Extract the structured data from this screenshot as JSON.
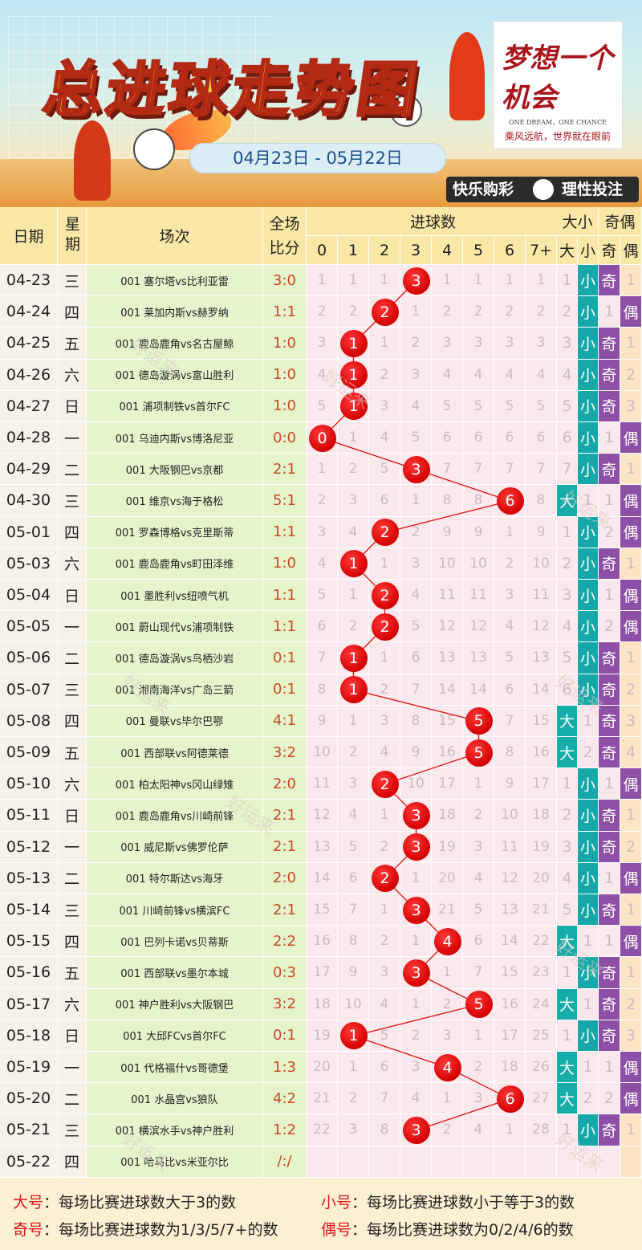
{
  "header": {
    "title": "总进球走势图",
    "date_range": "04月23日 - 05月22日",
    "card_title": "梦想一个机会",
    "card_line1": "ONE DREAM，ONE CHANCE",
    "card_line2": "乘风远航，世界就在眼前",
    "slogan_left": "快乐购彩",
    "slogan_right": "理性投注"
  },
  "table_headers": {
    "date": "日期",
    "week": "星期",
    "match": "场次",
    "score": "全场比分",
    "goals": "进球数",
    "size": "大小",
    "parity": "奇偶",
    "goal_cols": [
      "0",
      "1",
      "2",
      "3",
      "4",
      "5",
      "6",
      "7+"
    ],
    "size_cols": [
      "大",
      "小"
    ],
    "parity_cols": [
      "奇",
      "偶"
    ]
  },
  "colors": {
    "header_bg": "#fbe8a6",
    "row_bg": "#e6f4cc",
    "date_bg": "#f6f2ea",
    "grid_bg": "#fbe8ec",
    "size_big": "#16aca8",
    "size_small": "#16a8a8",
    "odd": "#8e4fa6",
    "even": "#8e4fa6",
    "marker": "#e01010",
    "score_text": "#c84a24"
  },
  "chart_data": {
    "type": "table",
    "title": "总进球走势图",
    "rows": [
      {
        "date": "04-23",
        "week": "三",
        "match": "001 塞尔塔vs比利亚雷",
        "score": "3:0",
        "goals": 3,
        "cells": [
          "1",
          "1",
          "1",
          "3",
          "1",
          "1",
          "1",
          "1"
        ],
        "big": "1",
        "small": "小",
        "odd": "奇",
        "even": "1"
      },
      {
        "date": "04-24",
        "week": "四",
        "match": "001 莱加内斯vs赫罗纳",
        "score": "1:1",
        "goals": 2,
        "cells": [
          "2",
          "2",
          "2",
          "1",
          "2",
          "2",
          "2",
          "2"
        ],
        "big": "2",
        "small": "小",
        "odd": "1",
        "even": "偶"
      },
      {
        "date": "04-25",
        "week": "五",
        "match": "001 鹿岛鹿角vs名古屋鲸",
        "score": "1:0",
        "goals": 1,
        "cells": [
          "3",
          "1",
          "1",
          "2",
          "3",
          "3",
          "3",
          "3"
        ],
        "big": "3",
        "small": "小",
        "odd": "奇",
        "even": "1"
      },
      {
        "date": "04-26",
        "week": "六",
        "match": "001 德岛漩涡vs富山胜利",
        "score": "1:0",
        "goals": 1,
        "cells": [
          "4",
          "1",
          "2",
          "3",
          "4",
          "4",
          "4",
          "4"
        ],
        "big": "4",
        "small": "小",
        "odd": "奇",
        "even": "2"
      },
      {
        "date": "04-27",
        "week": "日",
        "match": "001 浦项制铁vs首尔FC",
        "score": "1:0",
        "goals": 1,
        "cells": [
          "5",
          "1",
          "3",
          "4",
          "5",
          "5",
          "5",
          "5"
        ],
        "big": "5",
        "small": "小",
        "odd": "奇",
        "even": "3"
      },
      {
        "date": "04-28",
        "week": "一",
        "match": "001 乌迪内斯vs博洛尼亚",
        "score": "0:0",
        "goals": 0,
        "cells": [
          "0",
          "1",
          "4",
          "5",
          "6",
          "6",
          "6",
          "6"
        ],
        "big": "6",
        "small": "小",
        "odd": "1",
        "even": "偶"
      },
      {
        "date": "04-29",
        "week": "二",
        "match": "001 大阪钢巴vs京都",
        "score": "2:1",
        "goals": 3,
        "cells": [
          "1",
          "2",
          "5",
          "3",
          "7",
          "7",
          "7",
          "7"
        ],
        "big": "7",
        "small": "小",
        "odd": "奇",
        "even": "1"
      },
      {
        "date": "04-30",
        "week": "三",
        "match": "001 维京vs海于格松",
        "score": "5:1",
        "goals": 6,
        "cells": [
          "2",
          "3",
          "6",
          "1",
          "8",
          "8",
          "6",
          "8"
        ],
        "big": "大",
        "small": "1",
        "odd": "1",
        "even": "偶"
      },
      {
        "date": "05-01",
        "week": "四",
        "match": "001 罗森博格vs克里斯蒂",
        "score": "1:1",
        "goals": 2,
        "cells": [
          "3",
          "4",
          "2",
          "2",
          "9",
          "9",
          "1",
          "9"
        ],
        "big": "1",
        "small": "小",
        "odd": "2",
        "even": "偶"
      },
      {
        "date": "05-03",
        "week": "六",
        "match": "001 鹿岛鹿角vs町田泽维",
        "score": "1:0",
        "goals": 1,
        "cells": [
          "4",
          "1",
          "1",
          "3",
          "10",
          "10",
          "2",
          "10"
        ],
        "big": "2",
        "small": "小",
        "odd": "奇",
        "even": "1"
      },
      {
        "date": "05-04",
        "week": "日",
        "match": "001 墨胜利vs纽喷气机",
        "score": "1:1",
        "goals": 2,
        "cells": [
          "5",
          "1",
          "2",
          "4",
          "11",
          "11",
          "3",
          "11"
        ],
        "big": "3",
        "small": "小",
        "odd": "1",
        "even": "偶"
      },
      {
        "date": "05-05",
        "week": "一",
        "match": "001 蔚山现代vs浦项制铁",
        "score": "1:1",
        "goals": 2,
        "cells": [
          "6",
          "2",
          "2",
          "5",
          "12",
          "12",
          "4",
          "12"
        ],
        "big": "4",
        "small": "小",
        "odd": "2",
        "even": "偶"
      },
      {
        "date": "05-06",
        "week": "二",
        "match": "001 德岛漩涡vs鸟栖沙岩",
        "score": "0:1",
        "goals": 1,
        "cells": [
          "7",
          "1",
          "1",
          "6",
          "13",
          "13",
          "5",
          "13"
        ],
        "big": "5",
        "small": "小",
        "odd": "奇",
        "even": "1"
      },
      {
        "date": "05-07",
        "week": "三",
        "match": "001 湘南海洋vs广岛三箭",
        "score": "0:1",
        "goals": 1,
        "cells": [
          "8",
          "1",
          "2",
          "7",
          "14",
          "14",
          "6",
          "14"
        ],
        "big": "6",
        "small": "小",
        "odd": "奇",
        "even": "2"
      },
      {
        "date": "05-08",
        "week": "四",
        "match": "001 曼联vs毕尔巴鄂",
        "score": "4:1",
        "goals": 5,
        "cells": [
          "9",
          "1",
          "3",
          "8",
          "15",
          "5",
          "7",
          "15"
        ],
        "big": "大",
        "small": "1",
        "odd": "奇",
        "even": "3"
      },
      {
        "date": "05-09",
        "week": "五",
        "match": "001 西部联vs阿德莱德",
        "score": "3:2",
        "goals": 5,
        "cells": [
          "10",
          "2",
          "4",
          "9",
          "16",
          "5",
          "8",
          "16"
        ],
        "big": "大",
        "small": "2",
        "odd": "奇",
        "even": "4"
      },
      {
        "date": "05-10",
        "week": "六",
        "match": "001 柏太阳神vs冈山绿雉",
        "score": "2:0",
        "goals": 2,
        "cells": [
          "11",
          "3",
          "2",
          "10",
          "17",
          "1",
          "9",
          "17"
        ],
        "big": "1",
        "small": "小",
        "odd": "1",
        "even": "偶"
      },
      {
        "date": "05-11",
        "week": "日",
        "match": "001 鹿岛鹿角vs川崎前锋",
        "score": "2:1",
        "goals": 3,
        "cells": [
          "12",
          "4",
          "1",
          "3",
          "18",
          "2",
          "10",
          "18"
        ],
        "big": "2",
        "small": "小",
        "odd": "奇",
        "even": "1"
      },
      {
        "date": "05-12",
        "week": "一",
        "match": "001 威尼斯vs佛罗伦萨",
        "score": "2:1",
        "goals": 3,
        "cells": [
          "13",
          "5",
          "2",
          "3",
          "19",
          "3",
          "11",
          "19"
        ],
        "big": "3",
        "small": "小",
        "odd": "奇",
        "even": "2"
      },
      {
        "date": "05-13",
        "week": "二",
        "match": "001 特尔斯达vs海牙",
        "score": "2:0",
        "goals": 2,
        "cells": [
          "14",
          "6",
          "2",
          "1",
          "20",
          "4",
          "12",
          "20"
        ],
        "big": "4",
        "small": "小",
        "odd": "1",
        "even": "偶"
      },
      {
        "date": "05-14",
        "week": "三",
        "match": "001 川崎前锋vs横滨FC",
        "score": "2:1",
        "goals": 3,
        "cells": [
          "15",
          "7",
          "1",
          "3",
          "21",
          "5",
          "13",
          "21"
        ],
        "big": "5",
        "small": "小",
        "odd": "奇",
        "even": "1"
      },
      {
        "date": "05-15",
        "week": "四",
        "match": "001 巴列卡诺vs贝蒂斯",
        "score": "2:2",
        "goals": 4,
        "cells": [
          "16",
          "8",
          "2",
          "1",
          "4",
          "6",
          "14",
          "22"
        ],
        "big": "大",
        "small": "1",
        "odd": "1",
        "even": "偶"
      },
      {
        "date": "05-16",
        "week": "五",
        "match": "001 西部联vs墨尔本城",
        "score": "0:3",
        "goals": 3,
        "cells": [
          "17",
          "9",
          "3",
          "3",
          "1",
          "7",
          "15",
          "23"
        ],
        "big": "1",
        "small": "小",
        "odd": "奇",
        "even": "1"
      },
      {
        "date": "05-17",
        "week": "六",
        "match": "001 神户胜利vs大阪钢巴",
        "score": "3:2",
        "goals": 5,
        "cells": [
          "18",
          "10",
          "4",
          "1",
          "2",
          "5",
          "16",
          "24"
        ],
        "big": "大",
        "small": "1",
        "odd": "奇",
        "even": "2"
      },
      {
        "date": "05-18",
        "week": "日",
        "match": "001 大邱FCvs首尔FC",
        "score": "0:1",
        "goals": 1,
        "cells": [
          "19",
          "1",
          "5",
          "2",
          "3",
          "1",
          "17",
          "25"
        ],
        "big": "1",
        "small": "小",
        "odd": "奇",
        "even": "3"
      },
      {
        "date": "05-19",
        "week": "一",
        "match": "001 代格福什vs哥德堡",
        "score": "1:3",
        "goals": 4,
        "cells": [
          "20",
          "1",
          "6",
          "3",
          "4",
          "2",
          "18",
          "26"
        ],
        "big": "大",
        "small": "1",
        "odd": "1",
        "even": "偶"
      },
      {
        "date": "05-20",
        "week": "二",
        "match": "001 水晶宫vs狼队",
        "score": "4:2",
        "goals": 6,
        "cells": [
          "21",
          "2",
          "7",
          "4",
          "1",
          "3",
          "6",
          "27"
        ],
        "big": "大",
        "small": "2",
        "odd": "2",
        "even": "偶"
      },
      {
        "date": "05-21",
        "week": "三",
        "match": "001 横滨水手vs神户胜利",
        "score": "1:2",
        "goals": 3,
        "cells": [
          "22",
          "3",
          "8",
          "3",
          "2",
          "4",
          "1",
          "28"
        ],
        "big": "1",
        "small": "小",
        "odd": "奇",
        "even": "1"
      },
      {
        "date": "05-22",
        "week": "四",
        "match": "001 哈马比vs米亚尔比",
        "score": "/:/",
        "goals": null,
        "cells": [
          "",
          "",
          "",
          "",
          "",
          "",
          "",
          ""
        ],
        "big": "",
        "small": "",
        "odd": "",
        "even": ""
      }
    ]
  },
  "legend": {
    "big_label": "大号",
    "big_text": "：每场比赛进球数大于3的数",
    "small_label": "小号",
    "small_text": "：每场比赛进球数小于等于3的数",
    "odd_label": "奇号",
    "odd_text": "：每场比赛进球数为1/3/5/7+的数",
    "even_label": "偶号",
    "even_text": "：每场比赛进球数为0/2/4/6的数"
  },
  "watermark": "好运来"
}
